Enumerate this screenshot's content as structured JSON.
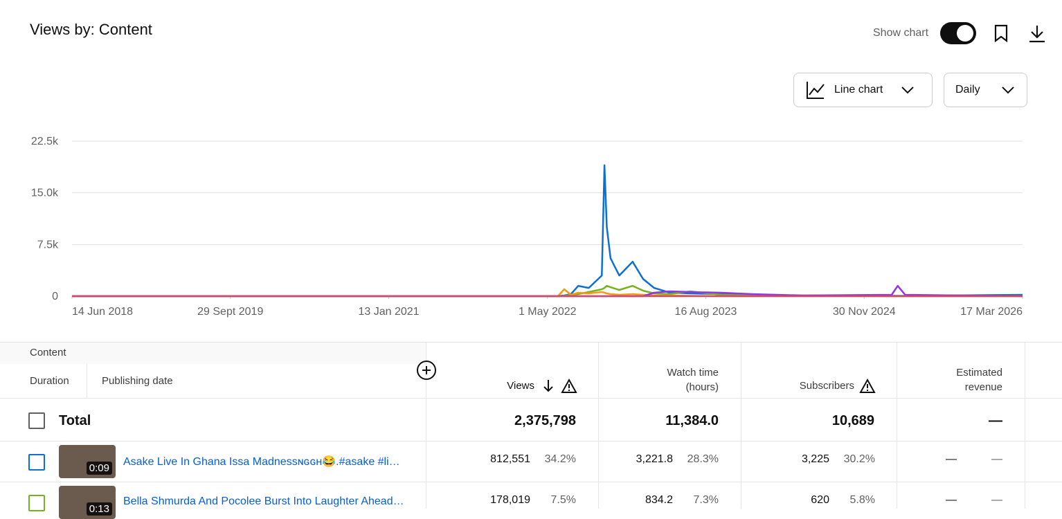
{
  "header": {
    "title": "Views by: Content",
    "show_chart": "Show chart"
  },
  "controls": {
    "chart_type": "Line chart",
    "interval": "Daily"
  },
  "chart_data": {
    "type": "line",
    "x": [
      "2018-06-14",
      "2022-06-01",
      "2022-06-20",
      "2022-07-10",
      "2022-08-01",
      "2022-09-01",
      "2022-10-10",
      "2022-10-18",
      "2022-10-25",
      "2022-11-05",
      "2022-12-01",
      "2023-01-10",
      "2023-02-10",
      "2023-03-15",
      "2023-05-01",
      "2023-07-01",
      "2023-10-01",
      "2024-01-01",
      "2024-06-01",
      "2025-02-20",
      "2025-03-10",
      "2025-04-01",
      "2026-03-17"
    ],
    "series": [
      {
        "color": "#0d6fd1",
        "values": [
          0,
          0,
          100,
          300,
          1500,
          1200,
          3000,
          19000,
          10000,
          5500,
          3000,
          5000,
          2500,
          1200,
          500,
          400,
          300,
          150,
          100,
          50,
          50,
          50,
          200
        ]
      },
      {
        "color": "#74b31f",
        "values": [
          0,
          0,
          50,
          200,
          300,
          600,
          1000,
          1200,
          1500,
          1300,
          900,
          1500,
          800,
          400,
          300,
          700,
          200,
          100,
          50,
          0,
          0,
          0,
          0
        ]
      },
      {
        "color": "#f29b13",
        "values": [
          0,
          0,
          1000,
          200,
          500,
          400,
          600,
          500,
          400,
          300,
          200,
          300,
          200,
          100,
          100,
          50,
          0,
          0,
          0,
          0,
          0,
          0,
          0
        ]
      },
      {
        "color": "#9334e6",
        "values": [
          0,
          0,
          0,
          0,
          0,
          0,
          0,
          0,
          0,
          0,
          0,
          0,
          0,
          500,
          700,
          600,
          500,
          300,
          100,
          200,
          1500,
          200,
          0
        ]
      },
      {
        "color": "#cf4a6b",
        "values": [
          0,
          0,
          0,
          0,
          0,
          0,
          0,
          0,
          0,
          0,
          0,
          0,
          0,
          0,
          0,
          0,
          0,
          0,
          0,
          0,
          0,
          0,
          0
        ]
      }
    ],
    "xlim": [
      "2018-06-14",
      "2026-03-17"
    ],
    "xticks": [
      {
        "value": "2018-06-14",
        "label": "14 Jun 2018"
      },
      {
        "value": "2019-09-29",
        "label": "29 Sept 2019"
      },
      {
        "value": "2021-01-13",
        "label": "13 Jan 2021"
      },
      {
        "value": "2022-05-01",
        "label": "1 May 2022"
      },
      {
        "value": "2023-08-16",
        "label": "16 Aug 2023"
      },
      {
        "value": "2024-11-30",
        "label": "30 Nov 2024"
      },
      {
        "value": "2026-03-17",
        "label": "17 Mar 2026"
      }
    ],
    "ylim": [
      0,
      22500
    ],
    "yticks": [
      0,
      {
        "value": 7500,
        "label": "7.5k"
      },
      {
        "value": 15000,
        "label": "15.0k"
      },
      {
        "value": 22500,
        "label": "22.5k"
      }
    ],
    "grid": true
  },
  "table": {
    "columns": {
      "content": "Content",
      "duration": "Duration",
      "publishing_date": "Publishing date",
      "views": "Views",
      "watch_time": "Watch time (hours)",
      "subscribers": "Subscribers",
      "revenue": "Estimated revenue"
    },
    "total": {
      "label": "Total",
      "views": "2,375,798",
      "watch_time": "11,384.0",
      "subscribers": "10,689",
      "revenue": "—"
    },
    "rows": [
      {
        "duration": "0:09",
        "title": "Asake Live In Ghana Issa Madnessɴɢɢʜ😂.#asake #li…",
        "views": "812,551",
        "views_share": "34.2%",
        "watch_time": "3,221.8",
        "watch_time_share": "28.3%",
        "subscribers": "3,225",
        "subscribers_share": "30.2%",
        "revenue": "—",
        "revenue_share": "—"
      },
      {
        "duration": "0:13",
        "title": "Bella Shmurda And Pocolee Burst Into Laughter Ahead…",
        "views": "178,019",
        "views_share": "7.5%",
        "watch_time": "834.2",
        "watch_time_share": "7.3%",
        "subscribers": "620",
        "subscribers_share": "5.8%",
        "revenue": "—",
        "revenue_share": "—"
      }
    ]
  }
}
